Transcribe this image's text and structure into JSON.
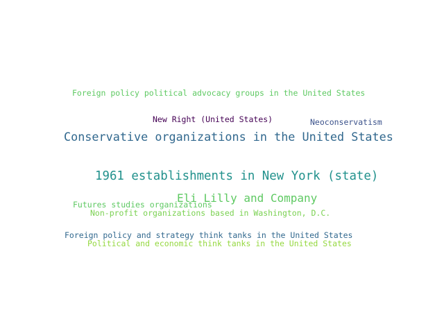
{
  "words": [
    {
      "text": "Foreign policy political advocacy groups in the United States",
      "color": "#5ec962"
    },
    {
      "text": "New Right (United States)",
      "color": "#440154"
    },
    {
      "text": "Neoconservatism",
      "color": "#3b528b"
    },
    {
      "text": "Conservative organizations in the United States",
      "color": "#31688e"
    },
    {
      "text": "1961 establishments in New York (state)",
      "color": "#21918c"
    },
    {
      "text": "Eli Lilly and Company",
      "color": "#5ec962"
    },
    {
      "text": "Futures studies organizations",
      "color": "#5ec962"
    },
    {
      "text": "Non-profit organizations based in Washington, D.C.",
      "color": "#7ad151"
    },
    {
      "text": "Foreign policy and strategy think tanks in the United States",
      "color": "#31688e"
    },
    {
      "text": "Political and economic think tanks in the United States",
      "color": "#95d840"
    }
  ]
}
